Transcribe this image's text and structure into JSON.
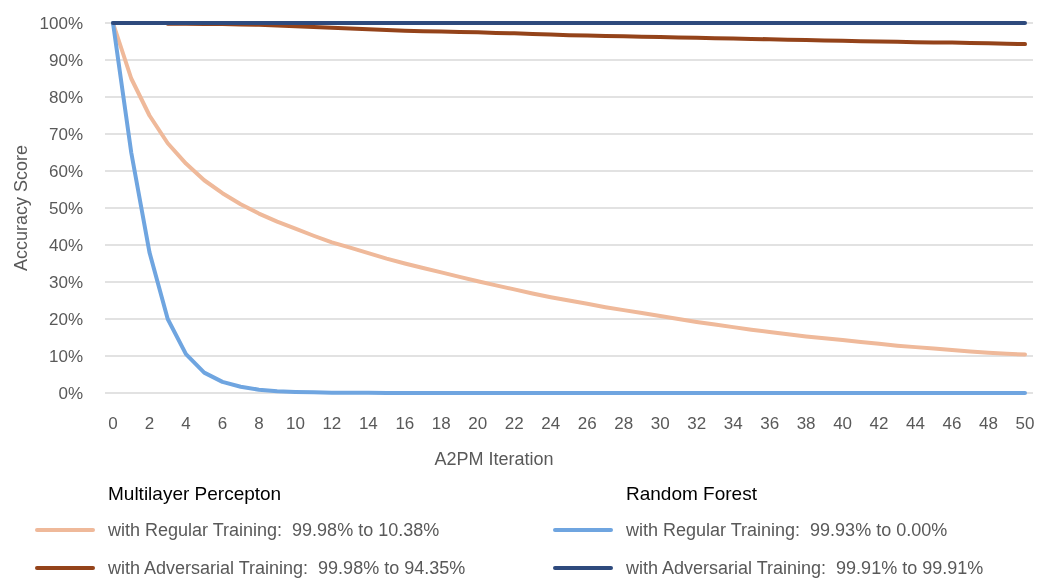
{
  "chart_data": {
    "type": "line",
    "xlabel": "A2PM Iteration",
    "ylabel": "Accuracy Score",
    "x": [
      0,
      1,
      2,
      3,
      4,
      5,
      6,
      7,
      8,
      9,
      10,
      11,
      12,
      13,
      14,
      15,
      16,
      17,
      18,
      19,
      20,
      21,
      22,
      23,
      24,
      25,
      26,
      27,
      28,
      29,
      30,
      31,
      32,
      33,
      34,
      35,
      36,
      37,
      38,
      39,
      40,
      41,
      42,
      43,
      44,
      45,
      46,
      47,
      48,
      49,
      50
    ],
    "xlim": [
      0,
      50
    ],
    "xticks": [
      0,
      2,
      4,
      6,
      8,
      10,
      12,
      14,
      16,
      18,
      20,
      22,
      24,
      26,
      28,
      30,
      32,
      34,
      36,
      38,
      40,
      42,
      44,
      46,
      48,
      50
    ],
    "ylim": [
      0,
      100
    ],
    "yticks": [
      {
        "value": 0,
        "label": "0%"
      },
      {
        "value": 10,
        "label": "10%"
      },
      {
        "value": 20,
        "label": "20%"
      },
      {
        "value": 30,
        "label": "30%"
      },
      {
        "value": 40,
        "label": "40%"
      },
      {
        "value": 50,
        "label": "50%"
      },
      {
        "value": 60,
        "label": "60%"
      },
      {
        "value": 70,
        "label": "70%"
      },
      {
        "value": 80,
        "label": "80%"
      },
      {
        "value": 90,
        "label": "90%"
      },
      {
        "value": 100,
        "label": "100%"
      }
    ],
    "grid": "y",
    "legend": "bottom",
    "annotations": [
      "Multilayer Percepton",
      "Random Forest"
    ],
    "series": [
      {
        "name": "with Regular Training:  99.98% to 10.38%",
        "color": "#efb99a",
        "values": [
          100,
          85,
          75,
          67.5,
          62,
          57.5,
          54,
          51,
          48.5,
          46.3,
          44.4,
          42.5,
          40.7,
          39.3,
          37.8,
          36.3,
          35,
          33.8,
          32.6,
          31.4,
          30.2,
          29.1,
          28,
          26.9,
          25.9,
          25,
          24.1,
          23.2,
          22.4,
          21.6,
          20.8,
          20,
          19.2,
          18.5,
          17.8,
          17.1,
          16.5,
          15.9,
          15.3,
          14.8,
          14.3,
          13.8,
          13.3,
          12.8,
          12.4,
          12,
          11.6,
          11.2,
          10.9,
          10.6,
          10.4
        ]
      },
      {
        "name": "with Adversarial Training:  99.98% to 94.35%",
        "color": "#94431a",
        "values": [
          null,
          null,
          null,
          99.8,
          99.8,
          99.7,
          99.7,
          99.6,
          99.5,
          99.3,
          99.1,
          98.9,
          98.7,
          98.5,
          98.3,
          98.1,
          97.9,
          97.8,
          97.7,
          97.6,
          97.5,
          97.3,
          97.2,
          97.0,
          96.9,
          96.7,
          96.6,
          96.5,
          96.4,
          96.3,
          96.2,
          96.1,
          96.0,
          95.9,
          95.8,
          95.7,
          95.6,
          95.5,
          95.4,
          95.3,
          95.2,
          95.1,
          95.0,
          94.9,
          94.8,
          94.7,
          94.7,
          94.6,
          94.5,
          94.4,
          94.3
        ]
      },
      {
        "name": "with Regular Training:  99.93% to 0.00%",
        "color": "#6fa5e0",
        "values": [
          100,
          65,
          38,
          20,
          10.5,
          5.5,
          3,
          1.7,
          0.9,
          0.5,
          0.3,
          0.2,
          0.1,
          0.1,
          0.1,
          0,
          0,
          0,
          0,
          0,
          0,
          0,
          0,
          0,
          0,
          0,
          0,
          0,
          0,
          0,
          0,
          0,
          0,
          0,
          0,
          0,
          0,
          0,
          0,
          0,
          0,
          0,
          0,
          0,
          0,
          0,
          0,
          0,
          0,
          0,
          0
        ]
      },
      {
        "name": "with Adversarial Training:  99.91% to 99.91%",
        "color": "#2e4a7d",
        "values": [
          100,
          100,
          100,
          100,
          100,
          100,
          100,
          100,
          100,
          100,
          100,
          100,
          100,
          100,
          100,
          100,
          100,
          100,
          100,
          100,
          100,
          100,
          100,
          100,
          100,
          100,
          100,
          100,
          100,
          100,
          100,
          100,
          100,
          100,
          100,
          100,
          100,
          100,
          100,
          100,
          100,
          100,
          100,
          100,
          100,
          100,
          100,
          100,
          100,
          100,
          100
        ]
      }
    ]
  }
}
